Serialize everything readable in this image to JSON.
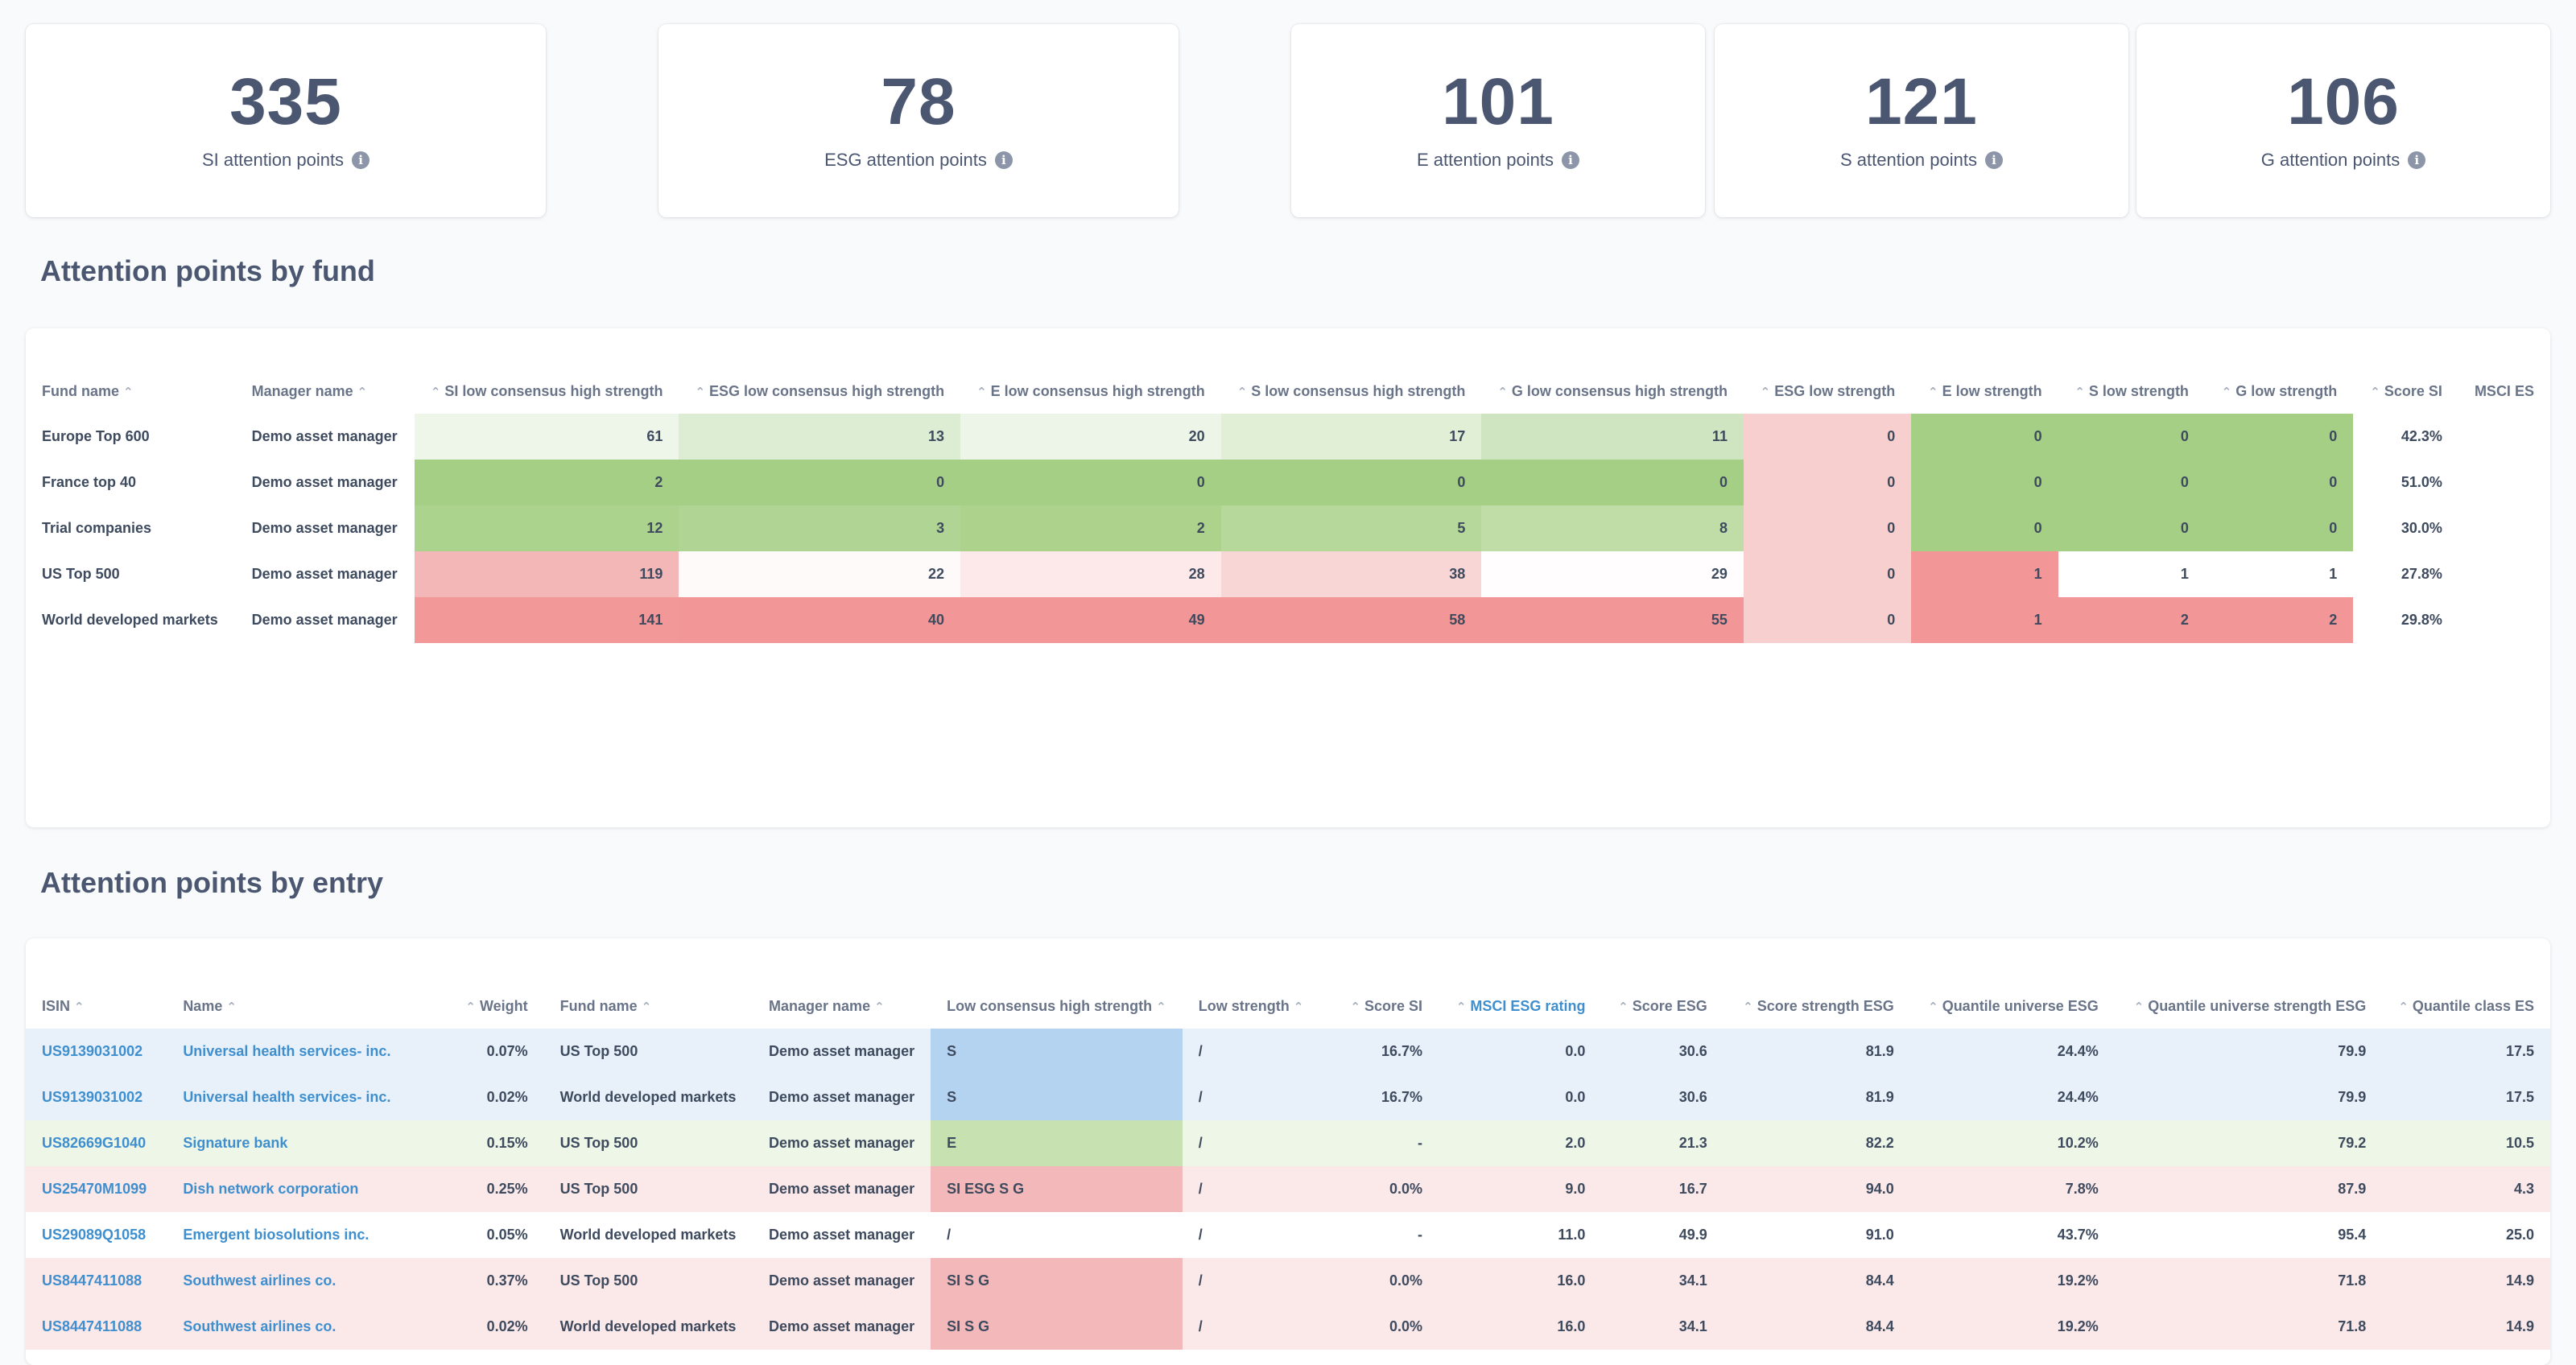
{
  "kpis": [
    {
      "value": "335",
      "label": "SI attention points"
    },
    {
      "value": "78",
      "label": "ESG attention points"
    },
    {
      "value": "101",
      "label": "E attention points"
    },
    {
      "value": "121",
      "label": "S attention points"
    },
    {
      "value": "106",
      "label": "G attention points"
    }
  ],
  "fund_section": {
    "title": "Attention points by fund",
    "columns": [
      "Fund name",
      "Manager name",
      "SI low consensus high strength",
      "ESG low consensus high strength",
      "E low consensus high strength",
      "S low consensus high strength",
      "G low consensus high strength",
      "ESG low strength",
      "E low strength",
      "S low strength",
      "G low strength",
      "Score SI",
      "MSCI ES"
    ],
    "rows": [
      {
        "cells": [
          "Europe Top 600",
          "Demo asset manager",
          "61",
          "13",
          "20",
          "17",
          "11",
          "0",
          "0",
          "0",
          "0",
          "42.3%",
          ""
        ],
        "colors": [
          "",
          "",
          "#eef5e9",
          "#dcedd3",
          "#edf5e8",
          "#e0efd6",
          "#cfe5c1",
          "#f8cfcf",
          "#a6cf86",
          "#a6cf86",
          "#a6cf86",
          "",
          ""
        ]
      },
      {
        "cells": [
          "France top 40",
          "Demo asset manager",
          "2",
          "0",
          "0",
          "0",
          "0",
          "0",
          "0",
          "0",
          "0",
          "51.0%",
          ""
        ],
        "colors": [
          "",
          "",
          "#a6cf86",
          "#a6cf86",
          "#a6cf86",
          "#a6cf86",
          "#a6cf86",
          "#f8cfcf",
          "#a6cf86",
          "#a6cf86",
          "#a6cf86",
          "",
          ""
        ]
      },
      {
        "cells": [
          "Trial companies",
          "Demo asset manager",
          "12",
          "3",
          "2",
          "5",
          "8",
          "0",
          "0",
          "0",
          "0",
          "30.0%",
          ""
        ],
        "colors": [
          "",
          "",
          "#acd38d",
          "#b0d493",
          "#acd28c",
          "#b6d89a",
          "#c0dda7",
          "#f8cfcf",
          "#a6cf86",
          "#a6cf86",
          "#a6cf86",
          "",
          ""
        ]
      },
      {
        "cells": [
          "US Top 500",
          "Demo asset manager",
          "119",
          "22",
          "28",
          "38",
          "29",
          "0",
          "1",
          "1",
          "1",
          "27.8%",
          ""
        ],
        "colors": [
          "",
          "",
          "#f4b7b8",
          "#fffafa",
          "#fde9e9",
          "#f9d6d6",
          "#fffdfd",
          "#f8cfcf",
          "#f29697",
          "#ffffff",
          "#ffffff",
          "",
          ""
        ]
      },
      {
        "cells": [
          "World developed markets",
          "Demo asset manager",
          "141",
          "40",
          "49",
          "58",
          "55",
          "0",
          "1",
          "2",
          "2",
          "29.8%",
          ""
        ],
        "colors": [
          "",
          "",
          "#f29899",
          "#f29697",
          "#f29697",
          "#f29697",
          "#f29697",
          "#f8cfcf",
          "#f29697",
          "#f29697",
          "#f29697",
          "",
          ""
        ]
      }
    ]
  },
  "entry_section": {
    "title": "Attention points by entry",
    "columns": [
      "ISIN",
      "Name",
      "Weight",
      "Fund name",
      "Manager name",
      "Low consensus high strength",
      "Low strength",
      "Score SI",
      "MSCI ESG rating",
      "Score ESG",
      "Score strength ESG",
      "Quantile universe ESG",
      "Quantile universe strength ESG",
      "Quantile class ES"
    ],
    "rows": [
      {
        "cells": [
          "US9139031002",
          "Universal health services- inc.",
          "0.07%",
          "US Top 500",
          "Demo asset manager",
          "S",
          "/",
          "16.7%",
          "0.0",
          "30.6",
          "81.9",
          "24.4%",
          "79.9",
          "17.5"
        ],
        "row_bg": "#e8f1fa",
        "lc_bg": "#b4d3f0"
      },
      {
        "cells": [
          "US9139031002",
          "Universal health services- inc.",
          "0.02%",
          "World developed markets",
          "Demo asset manager",
          "S",
          "/",
          "16.7%",
          "0.0",
          "30.6",
          "81.9",
          "24.4%",
          "79.9",
          "17.5"
        ],
        "row_bg": "#e8f1fa",
        "lc_bg": "#b4d3f0"
      },
      {
        "cells": [
          "US82669G1040",
          "Signature bank",
          "0.15%",
          "US Top 500",
          "Demo asset manager",
          "E",
          "/",
          "-",
          "2.0",
          "21.3",
          "82.2",
          "10.2%",
          "79.2",
          "10.5"
        ],
        "row_bg": "#edf6e7",
        "lc_bg": "#c7e2b0"
      },
      {
        "cells": [
          "US25470M1099",
          "Dish network corporation",
          "0.25%",
          "US Top 500",
          "Demo asset manager",
          "SI ESG S G",
          "/",
          "0.0%",
          "9.0",
          "16.7",
          "94.0",
          "7.8%",
          "87.9",
          "4.3"
        ],
        "row_bg": "#fbe8e9",
        "lc_bg": "#f3b9ba"
      },
      {
        "cells": [
          "US29089Q1058",
          "Emergent biosolutions inc.",
          "0.05%",
          "World developed markets",
          "Demo asset manager",
          "/",
          "/",
          "-",
          "11.0",
          "49.9",
          "91.0",
          "43.7%",
          "95.4",
          "25.0"
        ],
        "row_bg": "#ffffff",
        "lc_bg": "#ffffff"
      },
      {
        "cells": [
          "US8447411088",
          "Southwest airlines co.",
          "0.37%",
          "US Top 500",
          "Demo asset manager",
          "SI S G",
          "/",
          "0.0%",
          "16.0",
          "34.1",
          "84.4",
          "19.2%",
          "71.8",
          "14.9"
        ],
        "row_bg": "#fbe8e9",
        "lc_bg": "#f3b9ba"
      },
      {
        "cells": [
          "US8447411088",
          "Southwest airlines co.",
          "0.02%",
          "World developed markets",
          "Demo asset manager",
          "SI S G",
          "/",
          "0.0%",
          "16.0",
          "34.1",
          "84.4",
          "19.2%",
          "71.8",
          "14.9"
        ],
        "row_bg": "#fbe8e9",
        "lc_bg": "#f3b9ba"
      }
    ]
  }
}
